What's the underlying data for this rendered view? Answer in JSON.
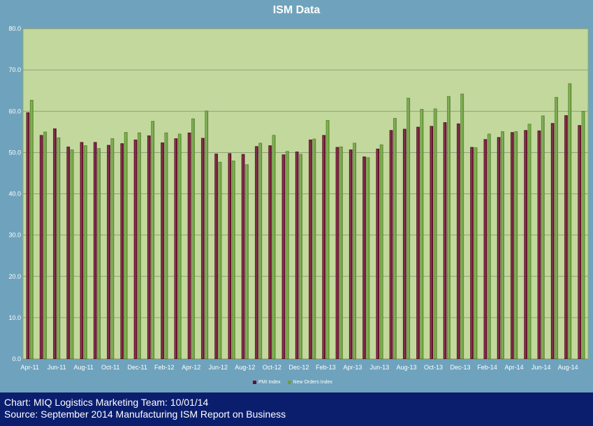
{
  "chart_data": {
    "type": "bar",
    "title": "ISM Data",
    "categories": [
      "Apr-11",
      "May-11",
      "Jun-11",
      "Jul-11",
      "Aug-11",
      "Sep-11",
      "Oct-11",
      "Nov-11",
      "Dec-11",
      "Jan-12",
      "Feb-12",
      "Mar-12",
      "Apr-12",
      "May-12",
      "Jun-12",
      "Jul-12",
      "Aug-12",
      "Sep-12",
      "Oct-12",
      "Nov-12",
      "Dec-12",
      "Jan-13",
      "Feb-13",
      "Mar-13",
      "Apr-13",
      "May-13",
      "Jun-13",
      "Jul-13",
      "Aug-13",
      "Sep-13",
      "Oct-13",
      "Nov-13",
      "Dec-13",
      "Jan-14",
      "Feb-14",
      "Mar-14",
      "Apr-14",
      "May-14",
      "Jun-14",
      "Jul-14",
      "Aug-14",
      "Sep-14"
    ],
    "x_tick_labels": [
      "Apr-11",
      "",
      "Jun-11",
      "",
      "Aug-11",
      "",
      "Oct-11",
      "",
      "Dec-11",
      "",
      "Feb-12",
      "",
      "Apr-12",
      "",
      "Jun-12",
      "",
      "Aug-12",
      "",
      "Oct-12",
      "",
      "Dec-12",
      "",
      "Feb-13",
      "",
      "Apr-13",
      "",
      "Jun-13",
      "",
      "Aug-13",
      "",
      "Oct-13",
      "",
      "Dec-13",
      "",
      "Feb-14",
      "",
      "Apr-14",
      "",
      "Jun-14",
      "",
      "Aug-14",
      ""
    ],
    "series": [
      {
        "name": "PMI Index",
        "color": "#6b0f2e",
        "values": [
          59.7,
          54.2,
          55.8,
          51.4,
          52.5,
          52.5,
          51.8,
          52.2,
          53.1,
          54.1,
          52.4,
          53.4,
          54.8,
          53.5,
          49.7,
          49.8,
          49.6,
          51.5,
          51.7,
          49.5,
          50.2,
          53.1,
          54.2,
          51.3,
          50.7,
          49.0,
          50.9,
          55.4,
          55.7,
          56.2,
          56.4,
          57.3,
          57.0,
          51.3,
          53.2,
          53.7,
          54.9,
          55.4,
          55.3,
          57.1,
          59.0,
          56.6
        ]
      },
      {
        "name": "New Orders Index",
        "color": "#6aa03a",
        "values": [
          62.7,
          55.0,
          53.6,
          50.7,
          51.7,
          51.0,
          53.4,
          54.9,
          54.8,
          57.6,
          54.8,
          54.5,
          58.2,
          60.1,
          47.7,
          48.0,
          47.1,
          52.3,
          54.2,
          50.3,
          49.6,
          53.3,
          57.8,
          51.4,
          52.3,
          48.8,
          51.9,
          58.3,
          63.2,
          60.5,
          60.6,
          63.6,
          64.2,
          51.2,
          54.5,
          55.1,
          55.1,
          56.9,
          58.9,
          63.4,
          66.7,
          60.0
        ]
      }
    ],
    "yticks": [
      "0.0",
      "10.0",
      "20.0",
      "30.0",
      "40.0",
      "50.0",
      "60.0",
      "70.0",
      "80.0"
    ],
    "ylim": [
      0,
      80
    ],
    "grid": true,
    "legend_position": "bottom"
  },
  "footer": {
    "line1": "Chart: MIQ Logistics Marketing Team: 10/01/14",
    "line2": "Source: September 2014 Manufacturing ISM Report on Business"
  }
}
